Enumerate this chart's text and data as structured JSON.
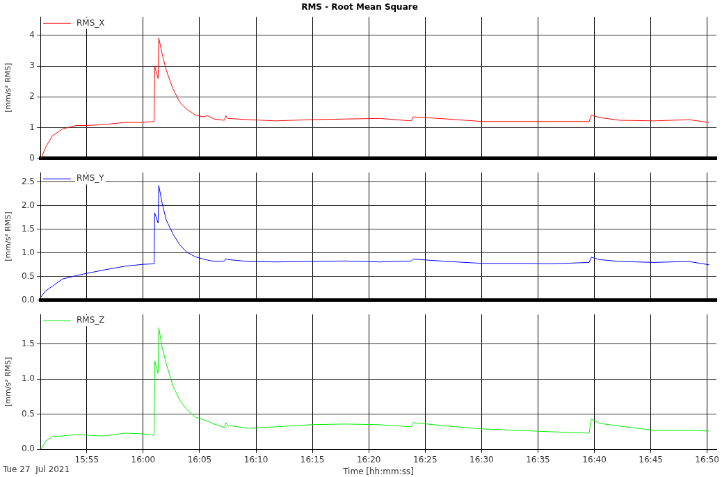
{
  "chart_data": [
    {
      "type": "line",
      "title": "RMS - Root Mean Square",
      "ylabel": "[mm/s² RMS]",
      "legend": "top left",
      "grid": true,
      "tick_labels": "y",
      "marker": "none",
      "line_style": "solid",
      "x": [
        15.849,
        15.856,
        15.866,
        15.881,
        15.901,
        15.917,
        15.942,
        15.973,
        16.0,
        16.016,
        16.017,
        16.022,
        16.023,
        16.028,
        16.034,
        16.044,
        16.054,
        16.064,
        16.077,
        16.089,
        16.095,
        16.105,
        16.12,
        16.122,
        16.125,
        16.155,
        16.196,
        16.247,
        16.298,
        16.349,
        16.396,
        16.399,
        16.45,
        16.501,
        16.552,
        16.603,
        16.659,
        16.662,
        16.674,
        16.704,
        16.755,
        16.806,
        16.836
      ],
      "series": [
        {
          "name": "RMS_X",
          "color": "#ff0000",
          "values": [
            0,
            0.37,
            0.74,
            0.96,
            1.07,
            1.07,
            1.1,
            1.17,
            1.17,
            1.2,
            3.0,
            2.6,
            3.92,
            3.4,
            2.87,
            2.26,
            1.83,
            1.6,
            1.41,
            1.35,
            1.39,
            1.28,
            1.24,
            1.39,
            1.3,
            1.26,
            1.22,
            1.26,
            1.28,
            1.3,
            1.22,
            1.35,
            1.28,
            1.2,
            1.2,
            1.2,
            1.2,
            1.41,
            1.33,
            1.24,
            1.22,
            1.26,
            1.17
          ]
        }
      ],
      "xlim": [
        15.848,
        16.847
      ],
      "xticks": [
        {
          "value": 15.9167,
          "label": null
        },
        {
          "value": 16,
          "label": null
        },
        {
          "value": 16.0833,
          "label": null
        },
        {
          "value": 16.1667,
          "label": null
        },
        {
          "value": 16.25,
          "label": null
        },
        {
          "value": 16.3333,
          "label": null
        },
        {
          "value": 16.4167,
          "label": null
        },
        {
          "value": 16.5,
          "label": null
        },
        {
          "value": 16.5833,
          "label": null
        },
        {
          "value": 16.6667,
          "label": null
        },
        {
          "value": 16.75,
          "label": null
        },
        {
          "value": 16.8333,
          "label": null
        }
      ],
      "ylim": [
        0,
        4.6
      ],
      "yticks": [
        0,
        1,
        2,
        3,
        4
      ]
    },
    {
      "type": "line",
      "ylabel": "[mm/s² RMS]",
      "legend": "top left",
      "grid": true,
      "tick_labels": "y",
      "marker": "none",
      "line_style": "solid",
      "x": [
        15.849,
        15.856,
        15.866,
        15.881,
        15.901,
        15.917,
        15.942,
        15.973,
        16.0,
        16.016,
        16.017,
        16.022,
        16.023,
        16.028,
        16.034,
        16.044,
        16.054,
        16.064,
        16.077,
        16.089,
        16.095,
        16.105,
        16.12,
        16.122,
        16.125,
        16.155,
        16.196,
        16.247,
        16.298,
        16.349,
        16.396,
        16.399,
        16.45,
        16.501,
        16.552,
        16.603,
        16.659,
        16.662,
        16.674,
        16.704,
        16.755,
        16.806,
        16.836
      ],
      "series": [
        {
          "name": "RMS_Y",
          "color": "#0000ff",
          "values": [
            0.07,
            0.2,
            0.3,
            0.45,
            0.52,
            0.57,
            0.64,
            0.72,
            0.76,
            0.77,
            1.85,
            1.63,
            2.43,
            2.05,
            1.7,
            1.4,
            1.17,
            1.02,
            0.92,
            0.87,
            0.85,
            0.82,
            0.83,
            0.88,
            0.86,
            0.82,
            0.81,
            0.82,
            0.83,
            0.81,
            0.83,
            0.87,
            0.82,
            0.78,
            0.78,
            0.77,
            0.8,
            0.91,
            0.86,
            0.82,
            0.8,
            0.82,
            0.75
          ]
        }
      ],
      "xlim": [
        15.848,
        16.847
      ],
      "xticks": [
        {
          "value": 15.9167,
          "label": null
        },
        {
          "value": 16,
          "label": null
        },
        {
          "value": 16.0833,
          "label": null
        },
        {
          "value": 16.1667,
          "label": null
        },
        {
          "value": 16.25,
          "label": null
        },
        {
          "value": 16.3333,
          "label": null
        },
        {
          "value": 16.4167,
          "label": null
        },
        {
          "value": 16.5,
          "label": null
        },
        {
          "value": 16.5833,
          "label": null
        },
        {
          "value": 16.6667,
          "label": null
        },
        {
          "value": 16.75,
          "label": null
        },
        {
          "value": 16.8333,
          "label": null
        }
      ],
      "ylim": [
        0,
        2.7
      ],
      "yticks": [
        {
          "value": 0,
          "label": "0.0"
        },
        {
          "value": 0.5,
          "label": "0.5"
        },
        {
          "value": 1,
          "label": "1.0"
        },
        {
          "value": 1.5,
          "label": "1.5"
        },
        {
          "value": 2,
          "label": "2.0"
        },
        {
          "value": 2.5,
          "label": "2.5"
        }
      ]
    },
    {
      "type": "line",
      "xlabel": "Time [hh:mm:ss]",
      "ylabel": "[mm/s² RMS]",
      "legend": "top left",
      "grid": true,
      "marker": "none",
      "line_style": "solid",
      "annotations": [
        "Tue 27  Jul 2021"
      ],
      "x": [
        15.849,
        15.856,
        15.866,
        15.881,
        15.901,
        15.917,
        15.942,
        15.973,
        16.0,
        16.016,
        16.017,
        16.022,
        16.023,
        16.028,
        16.034,
        16.044,
        16.054,
        16.064,
        16.077,
        16.089,
        16.095,
        16.105,
        16.12,
        16.122,
        16.125,
        16.155,
        16.196,
        16.247,
        16.298,
        16.349,
        16.396,
        16.399,
        16.45,
        16.501,
        16.552,
        16.603,
        16.659,
        16.662,
        16.674,
        16.704,
        16.755,
        16.806,
        16.836
      ],
      "series": [
        {
          "name": "RMS_Z",
          "color": "#00ee00",
          "values": [
            0,
            0.12,
            0.18,
            0.19,
            0.21,
            0.2,
            0.19,
            0.23,
            0.22,
            0.2,
            1.26,
            1.08,
            1.73,
            1.45,
            1.22,
            0.9,
            0.7,
            0.57,
            0.46,
            0.42,
            0.4,
            0.36,
            0.31,
            0.38,
            0.34,
            0.3,
            0.32,
            0.35,
            0.36,
            0.35,
            0.32,
            0.38,
            0.33,
            0.29,
            0.27,
            0.25,
            0.23,
            0.43,
            0.37,
            0.33,
            0.27,
            0.27,
            0.26
          ]
        }
      ],
      "xlim": [
        15.848,
        16.847
      ],
      "xticks": [
        {
          "value": 15.9167,
          "label": "15:55"
        },
        {
          "value": 16,
          "label": "16:00"
        },
        {
          "value": 16.0833,
          "label": "16:05"
        },
        {
          "value": 16.1667,
          "label": "16:10"
        },
        {
          "value": 16.25,
          "label": "16:15"
        },
        {
          "value": 16.3333,
          "label": "16:20"
        },
        {
          "value": 16.4167,
          "label": "16:25"
        },
        {
          "value": 16.5,
          "label": "16:30"
        },
        {
          "value": 16.5833,
          "label": "16:35"
        },
        {
          "value": 16.6667,
          "label": "16:40"
        },
        {
          "value": 16.75,
          "label": "16:45"
        },
        {
          "value": 16.8333,
          "label": "16:50"
        }
      ],
      "ylim": [
        0,
        1.92
      ],
      "yticks": [
        {
          "value": 0,
          "label": "0.0"
        },
        {
          "value": 0.5,
          "label": "0.5"
        },
        {
          "value": 1,
          "label": "1.0"
        },
        {
          "value": 1.5,
          "label": "1.5"
        }
      ]
    }
  ]
}
